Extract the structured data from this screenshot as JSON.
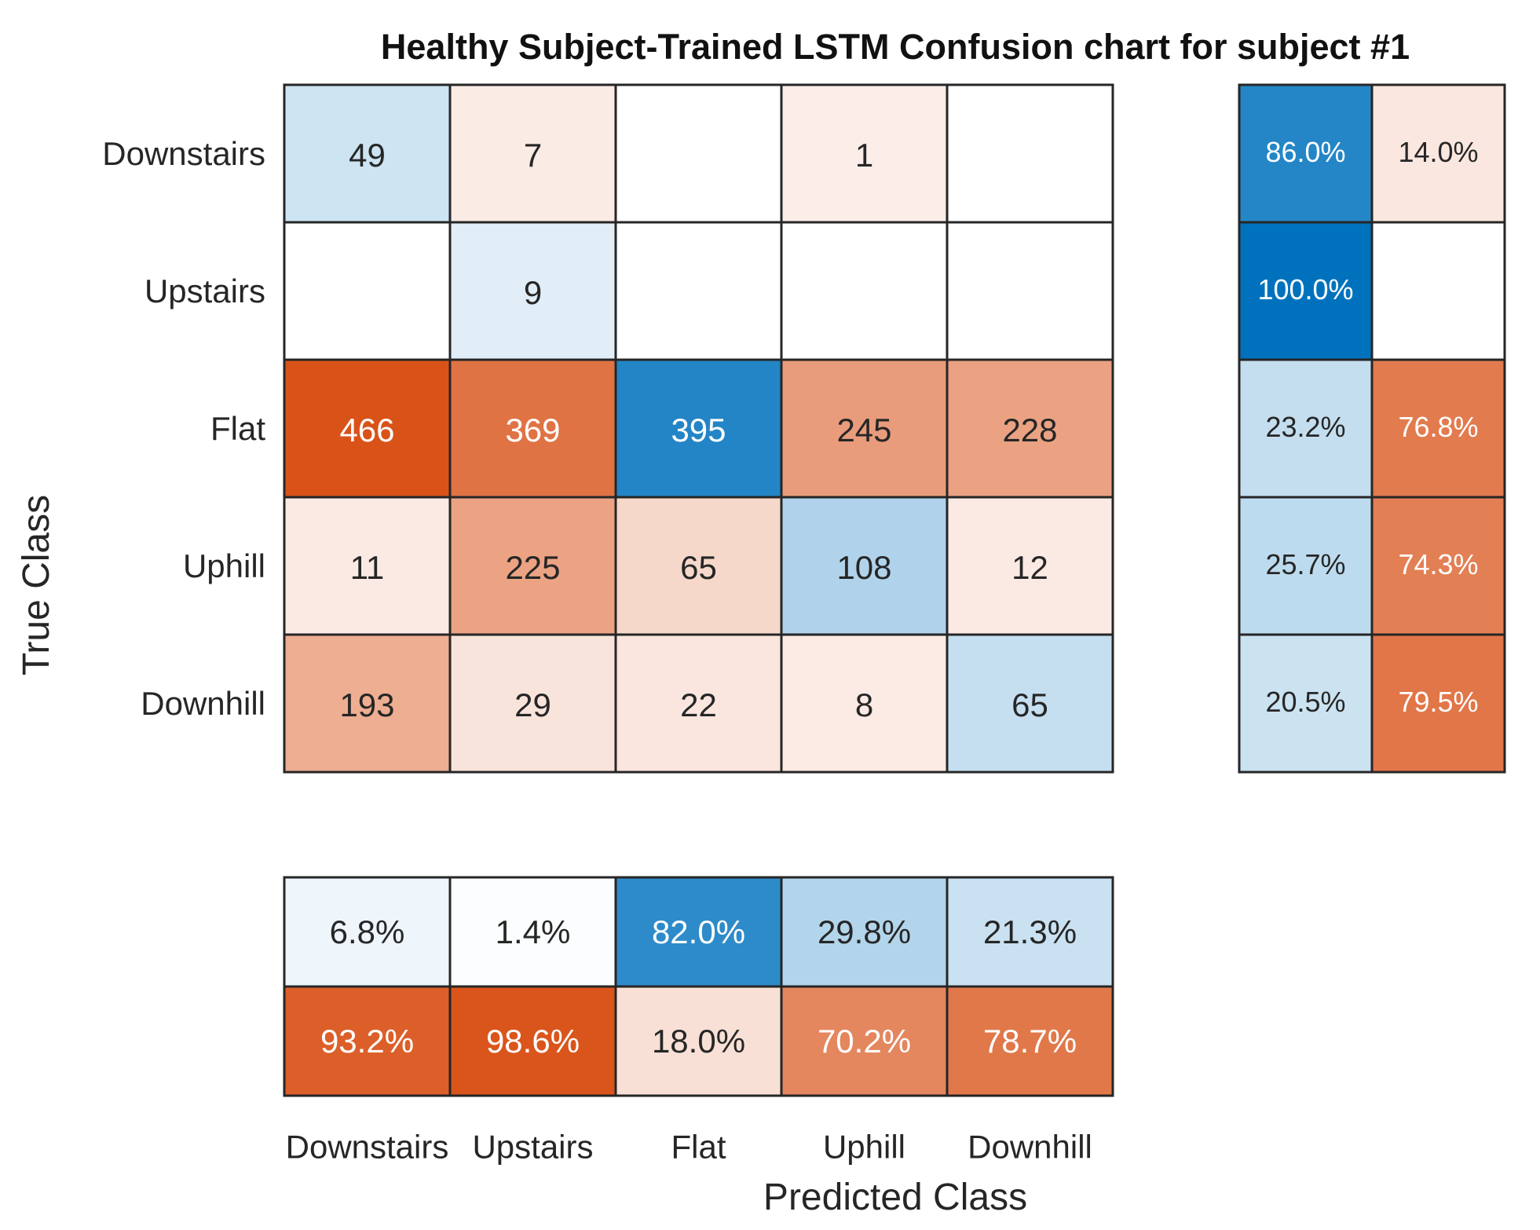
{
  "chart_data": {
    "type": "heatmap",
    "subtype": "confusion_matrix",
    "title": "Healthy Subject-Trained LSTM Confusion chart for subject #1",
    "xlabel": "Predicted Class",
    "ylabel": "True Class",
    "classes": [
      "Downstairs",
      "Upstairs",
      "Flat",
      "Uphill",
      "Downhill"
    ],
    "matrix": [
      [
        49,
        7,
        null,
        1,
        null
      ],
      [
        null,
        9,
        null,
        null,
        null
      ],
      [
        466,
        369,
        395,
        245,
        228
      ],
      [
        11,
        225,
        65,
        108,
        12
      ],
      [
        193,
        29,
        22,
        8,
        65
      ]
    ],
    "row_summary": {
      "correct": [
        "86.0%",
        "100.0%",
        "23.2%",
        "25.7%",
        "20.5%"
      ],
      "incorrect": [
        "14.0%",
        "",
        "76.8%",
        "74.3%",
        "79.5%"
      ]
    },
    "column_summary": {
      "correct": [
        "6.8%",
        "1.4%",
        "82.0%",
        "29.8%",
        "21.3%"
      ],
      "incorrect": [
        "93.2%",
        "98.6%",
        "18.0%",
        "70.2%",
        "78.7%"
      ]
    }
  },
  "colors": {
    "correct": "#0072BD",
    "incorrect": "#D95319",
    "empty": "#FFFFFF",
    "grid": "#262626"
  }
}
